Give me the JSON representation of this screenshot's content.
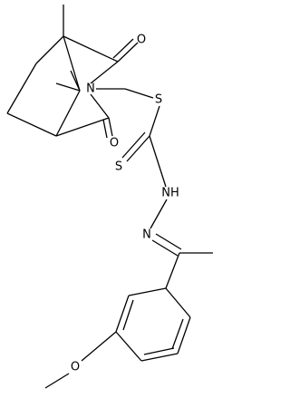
{
  "atoms": {
    "o_top": "O",
    "n_imide": "N",
    "o_bottom": "O",
    "s_link": "S",
    "s_thioxo": "S",
    "nh": "NH",
    "n_imine": "N",
    "o_methoxy": "O"
  }
}
